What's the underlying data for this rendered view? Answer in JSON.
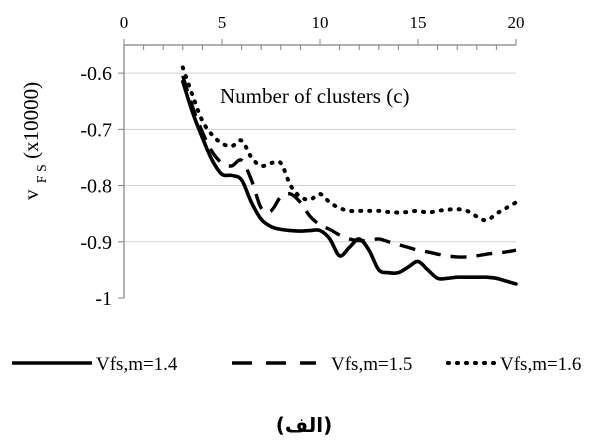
{
  "chart_data": {
    "type": "line",
    "x_axis_position": "top",
    "xlim": [
      0,
      20
    ],
    "ylim": [
      -1,
      -0.55
    ],
    "x_ticks": [
      "0",
      "5",
      "10",
      "15",
      "20"
    ],
    "y_ticks": [
      "-0.6",
      "-0.7",
      "-0.8",
      "-0.9",
      "-1"
    ],
    "xlabel": "Number of clusters (c)",
    "ylabel_main": "v",
    "ylabel_sub": "F S",
    "ylabel_rest": " (x10000)",
    "grid": "horizontal",
    "legend_position": "bottom",
    "caption": "(الف)",
    "series": [
      {
        "name": "Vfs,m=1.4",
        "style": "solid",
        "x": [
          3,
          3.5,
          4,
          4.5,
          5,
          5.5,
          6,
          6.5,
          7,
          7.5,
          8,
          8.5,
          9,
          9.5,
          10,
          10.5,
          11,
          11.5,
          12,
          12.5,
          13,
          13.5,
          14,
          14.5,
          15,
          15.5,
          16,
          16.5,
          17,
          17.5,
          18,
          18.5,
          19,
          19.5,
          20
        ],
        "values": [
          -0.615,
          -0.67,
          -0.715,
          -0.755,
          -0.78,
          -0.782,
          -0.79,
          -0.83,
          -0.86,
          -0.873,
          -0.878,
          -0.88,
          -0.881,
          -0.88,
          -0.88,
          -0.895,
          -0.925,
          -0.91,
          -0.895,
          -0.915,
          -0.95,
          -0.955,
          -0.955,
          -0.945,
          -0.935,
          -0.95,
          -0.965,
          -0.965,
          -0.963,
          -0.963,
          -0.963,
          -0.963,
          -0.965,
          -0.97,
          -0.975
        ]
      },
      {
        "name": "Vfs,m=1.5",
        "style": "dashed",
        "x": [
          3,
          3.5,
          4,
          4.5,
          5,
          5.5,
          6,
          6.5,
          7,
          7.5,
          8,
          8.5,
          9,
          9.5,
          10,
          10.5,
          11,
          11.5,
          12,
          12.5,
          13,
          13.5,
          14,
          14.5,
          15,
          15.5,
          16,
          16.5,
          17,
          17.5,
          18,
          18.5,
          19,
          19.5,
          20
        ],
        "values": [
          -0.605,
          -0.66,
          -0.705,
          -0.74,
          -0.76,
          -0.765,
          -0.755,
          -0.79,
          -0.84,
          -0.845,
          -0.82,
          -0.815,
          -0.83,
          -0.855,
          -0.87,
          -0.878,
          -0.888,
          -0.895,
          -0.898,
          -0.898,
          -0.895,
          -0.9,
          -0.905,
          -0.91,
          -0.915,
          -0.918,
          -0.922,
          -0.925,
          -0.927,
          -0.927,
          -0.925,
          -0.922,
          -0.92,
          -0.918,
          -0.915
        ]
      },
      {
        "name": "Vfs,m=1.6",
        "style": "dotted",
        "x": [
          3,
          3.5,
          4,
          4.5,
          5,
          5.5,
          6,
          6.5,
          7,
          7.5,
          8,
          8.5,
          9,
          9.5,
          10,
          10.5,
          11,
          11.5,
          12,
          12.5,
          13,
          13.5,
          14,
          14.5,
          15,
          15.5,
          16,
          16.5,
          17,
          17.5,
          18,
          18.5,
          19,
          19.5,
          20
        ],
        "values": [
          -0.59,
          -0.64,
          -0.685,
          -0.71,
          -0.725,
          -0.73,
          -0.72,
          -0.75,
          -0.765,
          -0.76,
          -0.76,
          -0.8,
          -0.82,
          -0.825,
          -0.815,
          -0.83,
          -0.84,
          -0.845,
          -0.845,
          -0.845,
          -0.845,
          -0.847,
          -0.848,
          -0.847,
          -0.845,
          -0.848,
          -0.845,
          -0.843,
          -0.842,
          -0.845,
          -0.855,
          -0.862,
          -0.85,
          -0.84,
          -0.83
        ]
      }
    ]
  }
}
